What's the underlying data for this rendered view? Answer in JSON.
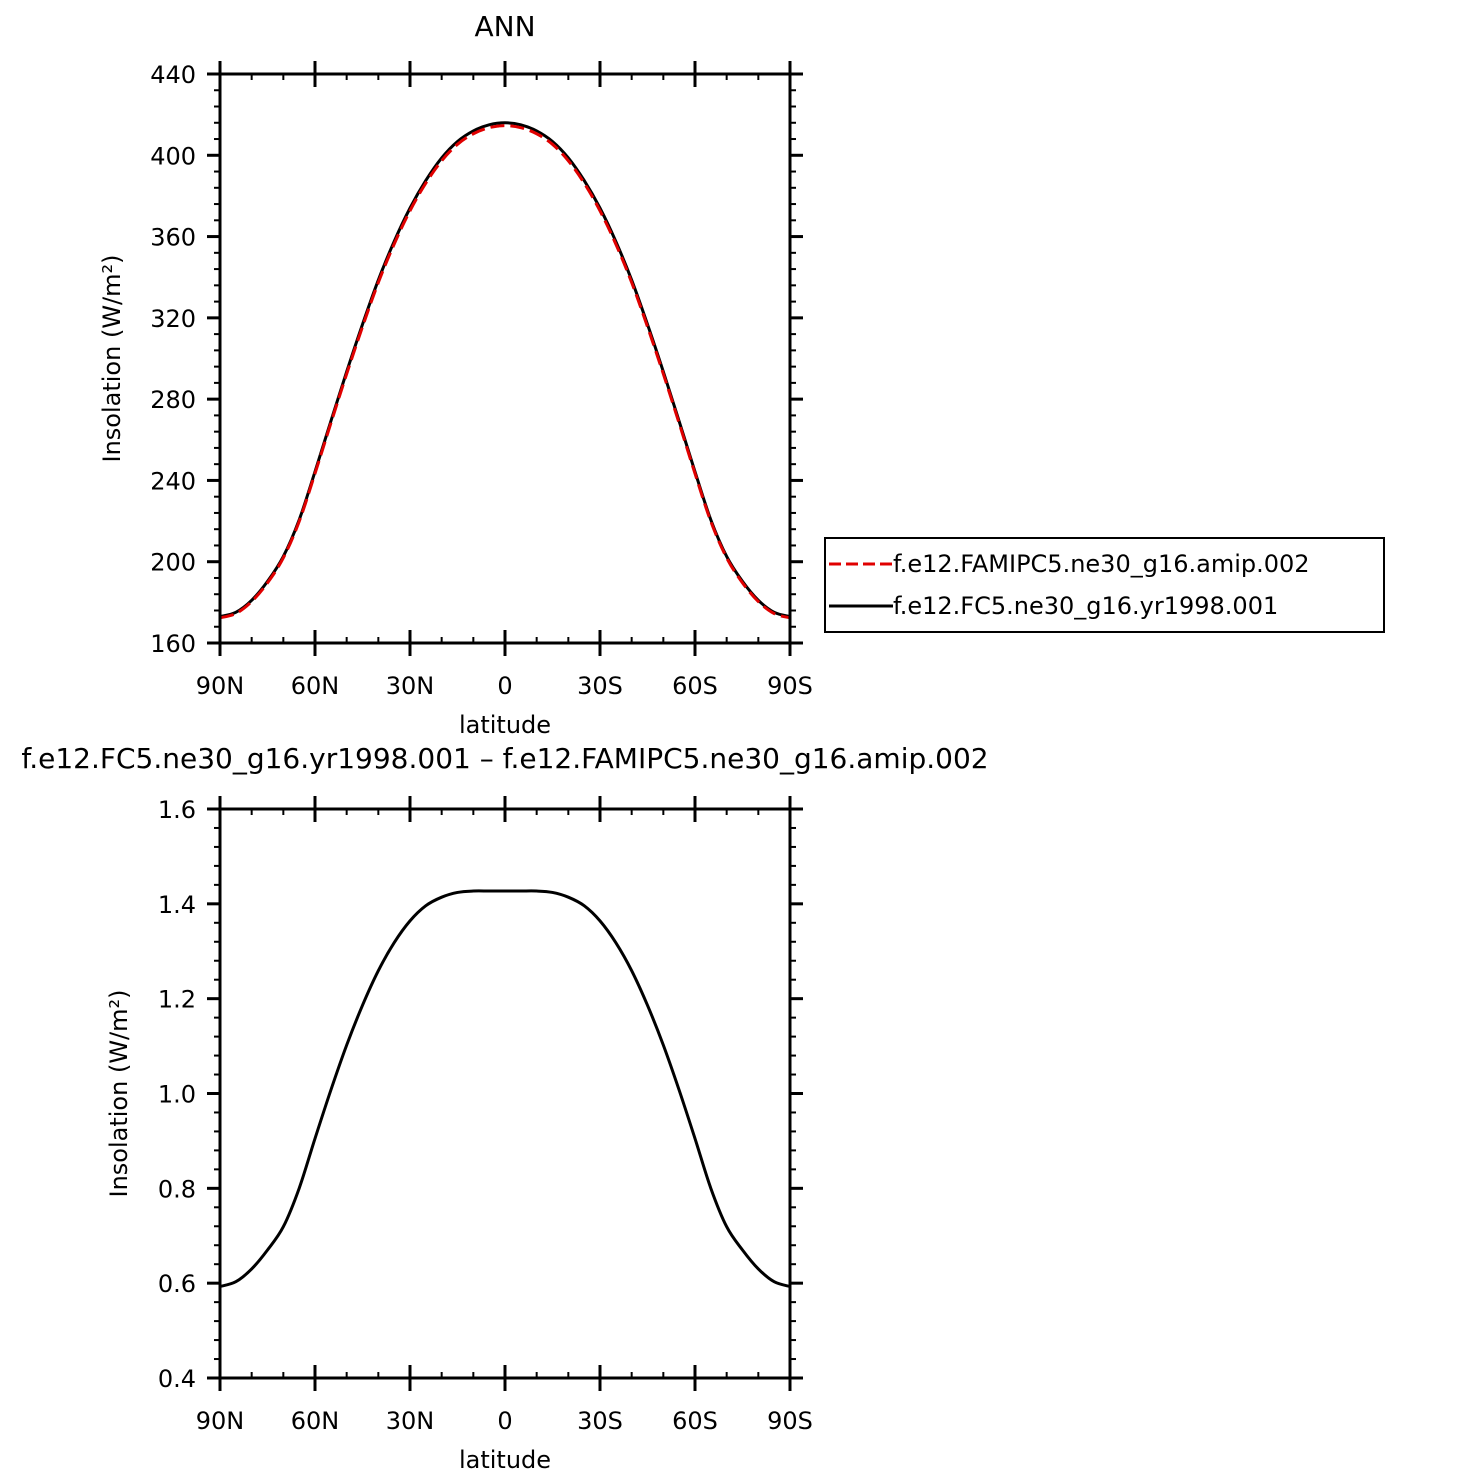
{
  "chart_data": [
    {
      "type": "line",
      "title": "ANN",
      "xlabel": "latitude",
      "ylabel": "Insolation (W/m²)",
      "xlim": [
        -90,
        90
      ],
      "ylim": [
        160,
        440
      ],
      "xticks": [
        -90,
        -60,
        -30,
        0,
        30,
        60,
        90
      ],
      "xtick_labels": [
        "90N",
        "60N",
        "30N",
        "0",
        "30S",
        "60S",
        "90S"
      ],
      "yticks": [
        160,
        200,
        240,
        280,
        320,
        360,
        400,
        440
      ],
      "ytick_labels": [
        "160",
        "200",
        "240",
        "280",
        "320",
        "360",
        "400",
        "440"
      ],
      "grid": false,
      "legend": "right, outside",
      "x": [
        -90,
        -85,
        -80,
        -75,
        -70,
        -65,
        -60,
        -55,
        -50,
        -45,
        -40,
        -35,
        -30,
        -25,
        -20,
        -15,
        -10,
        -5,
        0,
        5,
        10,
        15,
        20,
        25,
        30,
        35,
        40,
        45,
        50,
        55,
        60,
        65,
        70,
        75,
        80,
        85,
        90
      ],
      "series": [
        {
          "name": "f.e12.FAMIPC5.ne30_g16.amip.002",
          "color": "#e00000",
          "dash": "dashed",
          "values": [
            172.4,
            174.5,
            180.4,
            189.6,
            201.9,
            219.8,
            243.4,
            268.1,
            292.4,
            315.6,
            337.4,
            356.3,
            372.7,
            386.3,
            397.3,
            405.4,
            410.6,
            413.6,
            414.6,
            413.6,
            410.6,
            405.4,
            397.3,
            386.3,
            372.7,
            356.3,
            337.4,
            315.6,
            292.4,
            268.1,
            243.4,
            219.8,
            201.9,
            189.6,
            180.4,
            174.5,
            172.4
          ]
        },
        {
          "name": "f.e12.FC5.ne30_g16.yr1998.001",
          "color": "#000000",
          "dash": "solid",
          "values": [
            173.0,
            175.1,
            181.0,
            190.3,
            202.6,
            220.6,
            244.3,
            269.1,
            293.5,
            316.8,
            338.6,
            357.6,
            374.0,
            387.6,
            398.7,
            406.8,
            412.0,
            415.0,
            416.0,
            415.0,
            412.0,
            406.8,
            398.7,
            387.6,
            374.0,
            357.6,
            338.6,
            316.8,
            293.5,
            269.1,
            244.3,
            220.6,
            202.6,
            190.3,
            181.0,
            175.1,
            173.0
          ]
        }
      ]
    },
    {
      "type": "line",
      "title": "f.e12.FC5.ne30_g16.yr1998.001 – f.e12.FAMIPC5.ne30_g16.amip.002",
      "xlabel": "latitude",
      "ylabel": "Insolation (W/m²)",
      "xlim": [
        -90,
        90
      ],
      "ylim": [
        0.4,
        1.6
      ],
      "xticks": [
        -90,
        -60,
        -30,
        0,
        30,
        60,
        90
      ],
      "xtick_labels": [
        "90N",
        "60N",
        "30N",
        "0",
        "30S",
        "60S",
        "90S"
      ],
      "yticks": [
        0.4,
        0.6,
        0.8,
        1.0,
        1.2,
        1.4,
        1.6
      ],
      "ytick_labels": [
        "0.4",
        "0.6",
        "0.8",
        "1.0",
        "1.2",
        "1.4",
        "1.6"
      ],
      "grid": false,
      "x": [
        -90,
        -85,
        -80,
        -75,
        -70,
        -65,
        -60,
        -55,
        -50,
        -45,
        -40,
        -35,
        -30,
        -25,
        -20,
        -15,
        -10,
        -5,
        0,
        5,
        10,
        15,
        20,
        25,
        30,
        35,
        40,
        45,
        50,
        55,
        60,
        65,
        70,
        75,
        80,
        85,
        90
      ],
      "series": [
        {
          "color": "#000000",
          "dash": "solid",
          "values": [
            0.593,
            0.603,
            0.63,
            0.67,
            0.719,
            0.8,
            0.905,
            1.007,
            1.102,
            1.186,
            1.259,
            1.318,
            1.364,
            1.396,
            1.414,
            1.424,
            1.427,
            1.427,
            1.427,
            1.427,
            1.427,
            1.424,
            1.414,
            1.396,
            1.364,
            1.318,
            1.259,
            1.186,
            1.102,
            1.007,
            0.905,
            0.8,
            0.719,
            0.67,
            0.63,
            0.603,
            0.593
          ]
        }
      ]
    }
  ]
}
